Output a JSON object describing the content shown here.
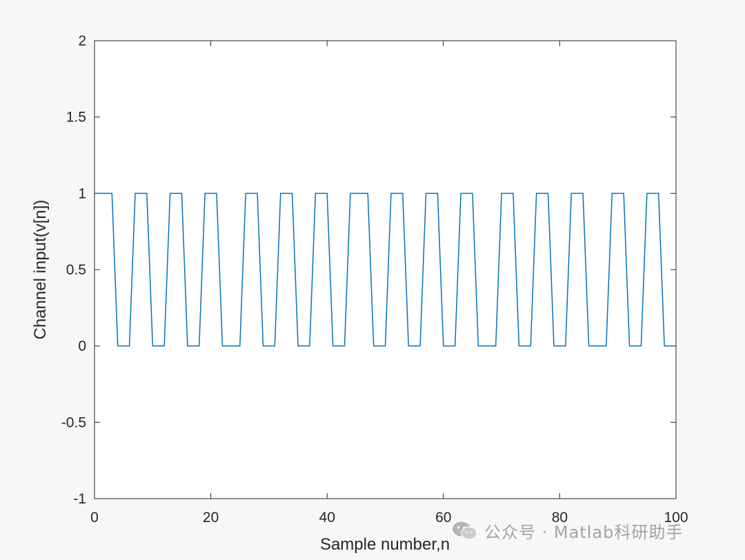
{
  "chart_data": {
    "type": "line",
    "xlabel": "Sample number,n",
    "ylabel": "Channel input(v[n])",
    "xlim": [
      0,
      100
    ],
    "ylim": [
      -1,
      2
    ],
    "xticks": [
      "0",
      "20",
      "40",
      "60",
      "80",
      "100"
    ],
    "yticks": [
      "-1",
      "-0.5",
      "0",
      "0.5",
      "1",
      "1.5",
      "2"
    ],
    "grid": false,
    "legend": "none",
    "series": [
      {
        "color": "#0072BD",
        "x": [
          0,
          3,
          4,
          6,
          7,
          9,
          10,
          12,
          13,
          15,
          16,
          18,
          19,
          21,
          22,
          25,
          26,
          28,
          29,
          31,
          32,
          34,
          35,
          37,
          38,
          40,
          41,
          43,
          44,
          47,
          48,
          50,
          51,
          53,
          54,
          56,
          57,
          59,
          60,
          62,
          63,
          65,
          66,
          69,
          70,
          72,
          73,
          75,
          76,
          78,
          79,
          81,
          82,
          84,
          85,
          88,
          89,
          91,
          92,
          94,
          95,
          97,
          98,
          100
        ],
        "y": [
          1,
          1,
          0,
          0,
          1,
          1,
          0,
          0,
          1,
          1,
          0,
          0,
          1,
          1,
          0,
          0,
          1,
          1,
          0,
          0,
          1,
          1,
          0,
          0,
          1,
          1,
          0,
          0,
          1,
          1,
          0,
          0,
          1,
          1,
          0,
          0,
          1,
          1,
          0,
          0,
          1,
          1,
          0,
          0,
          1,
          1,
          0,
          0,
          1,
          1,
          0,
          0,
          1,
          1,
          0,
          0,
          1,
          1,
          0,
          0,
          1,
          1,
          0,
          0
        ]
      }
    ]
  },
  "watermark": {
    "text": "公众号 · Matlab科研助手",
    "icon": "wechat-icon"
  }
}
